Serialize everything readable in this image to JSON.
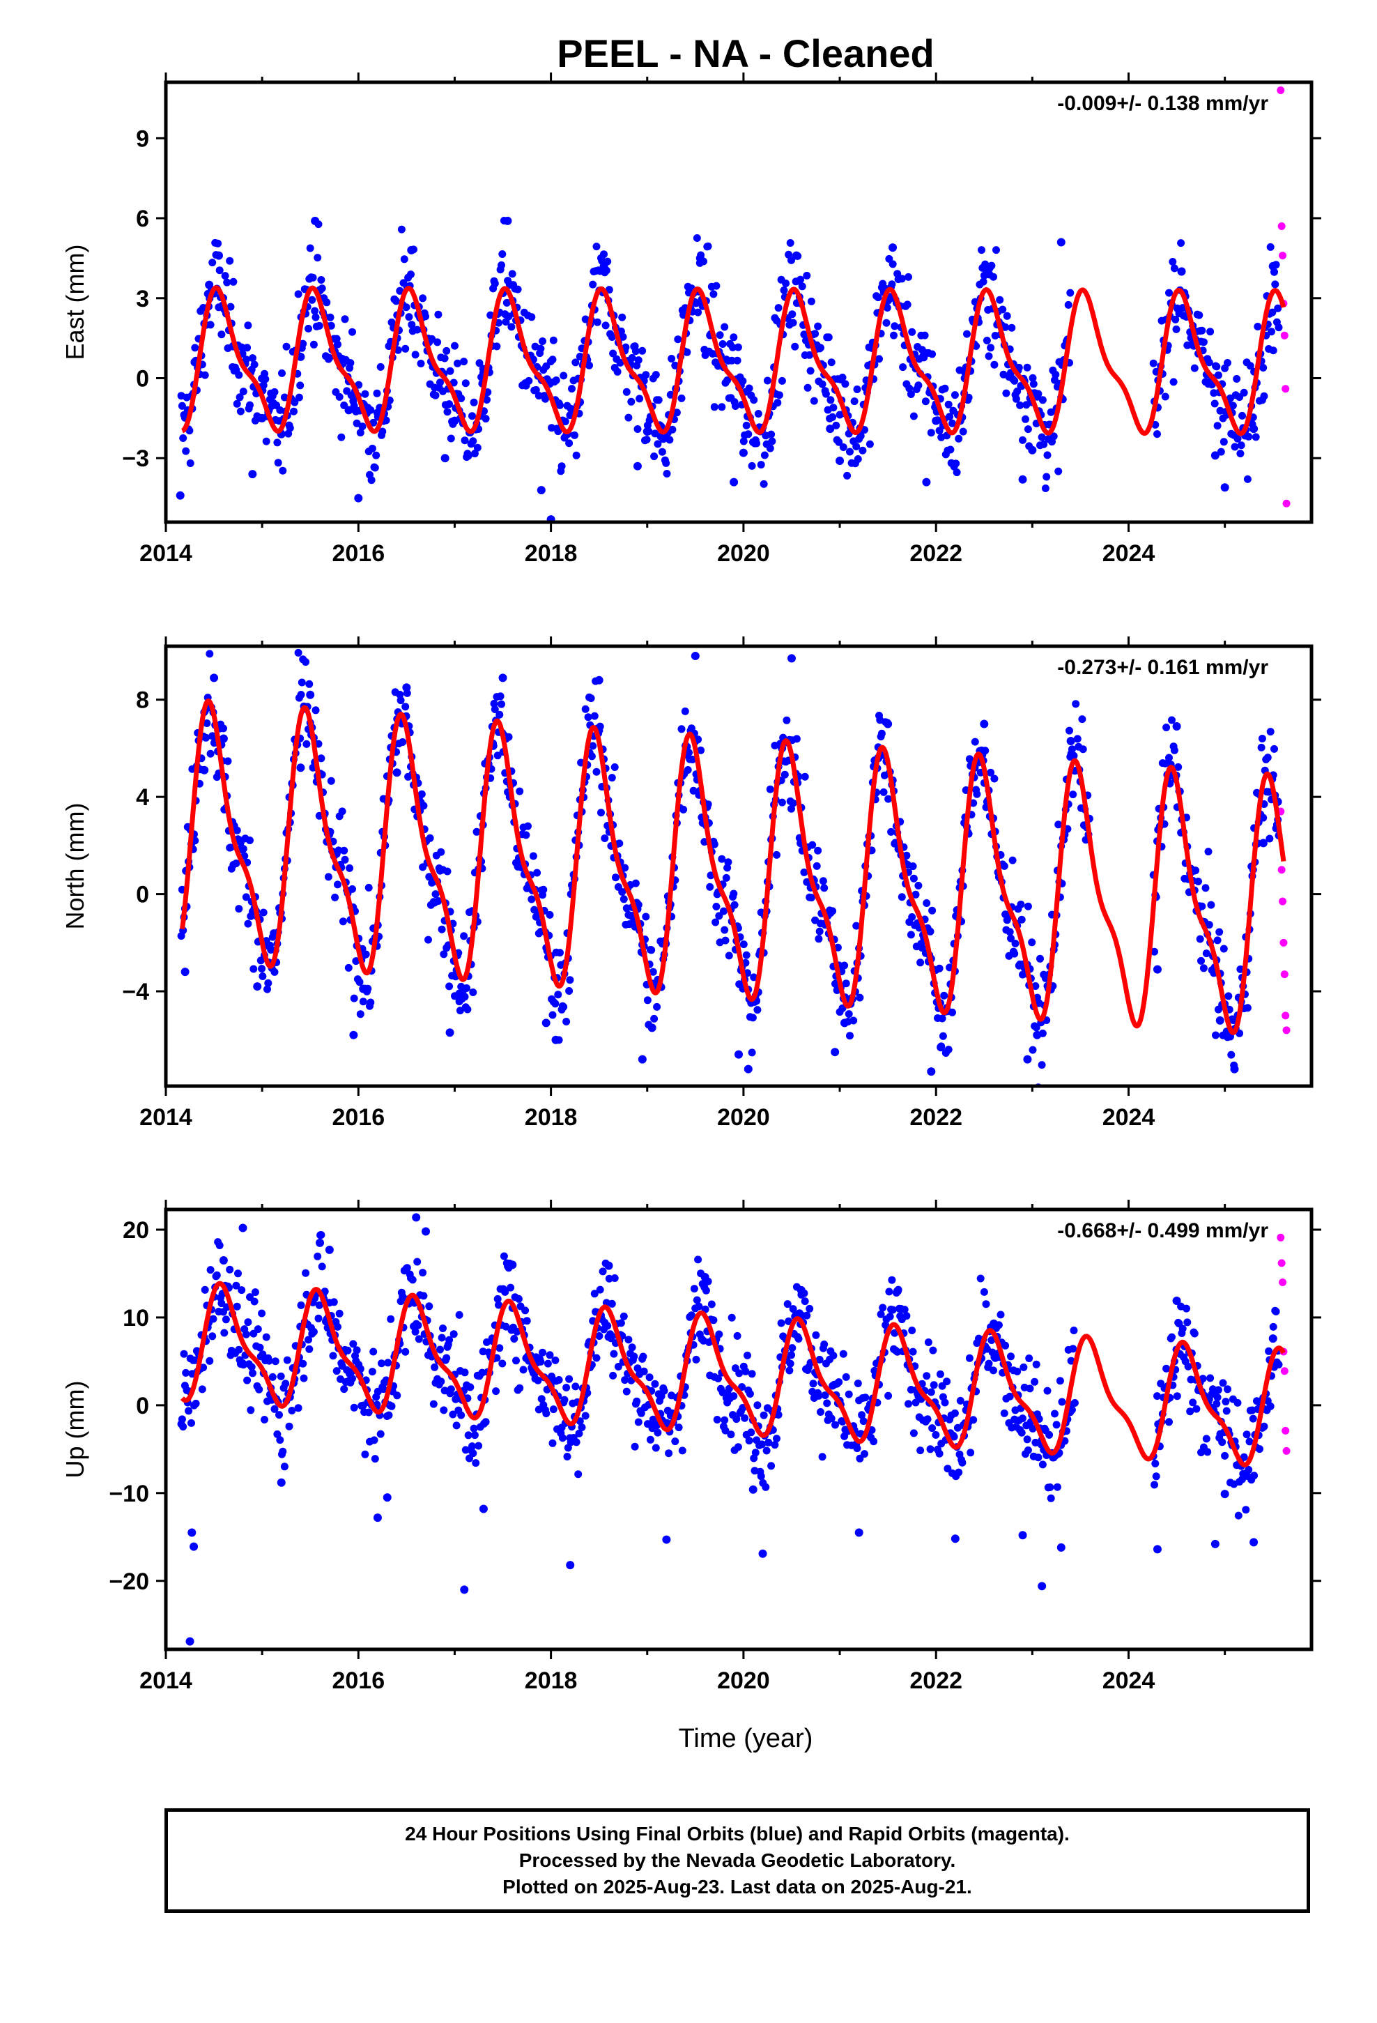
{
  "title": "PEEL  - NA - Cleaned",
  "xlabel": "Time (year)",
  "footer": {
    "line1": "24 Hour Positions Using Final Orbits (blue) and Rapid Orbits (magenta).",
    "line2": "Processed by the Nevada Geodetic Laboratory.",
    "line3": "Plotted on 2025-Aug-23. Last data on 2025-Aug-21."
  },
  "colors": {
    "final": "#0000ff",
    "rapid": "#ff00ff",
    "model": "#ff0000"
  },
  "chart_data": [
    {
      "type": "scatter",
      "component": "east",
      "ylabel": "East (mm)",
      "rate_text": "-0.009+/- 0.138 mm/yr",
      "xlim": [
        2014.0,
        2025.9
      ],
      "ylim": [
        -5.4,
        11.1
      ],
      "xticks": [
        2014,
        2016,
        2018,
        2020,
        2022,
        2024
      ],
      "yticks": [
        -3,
        0,
        3,
        6,
        9
      ],
      "ytick_labels": [
        "−3",
        "0",
        "3",
        "6",
        "9"
      ],
      "seasonal": {
        "amplitude": 2.3,
        "offset": 0.5,
        "peak_phase": 0.58,
        "trend": -0.009,
        "t0": 2019.8
      },
      "gap": [
        2023.4,
        2024.25
      ],
      "series": [
        {
          "name": "Final Orbits",
          "x": [
            2014.15,
            2014.3,
            2014.45,
            2014.55,
            2014.7,
            2014.9,
            2015.0,
            2015.2,
            2015.4,
            2015.55,
            2015.6,
            2015.9,
            2016.0,
            2016.2,
            2016.4,
            2016.55,
            2016.9,
            2017.0,
            2017.3,
            2017.55,
            2017.6,
            2017.9,
            2018.0,
            2018.3,
            2018.55,
            2018.9,
            2019.0,
            2019.3,
            2019.55,
            2019.9,
            2020.0,
            2020.3,
            2020.55,
            2020.9,
            2021.0,
            2021.3,
            2021.55,
            2021.9,
            2022.0,
            2022.3,
            2022.55,
            2022.9,
            2023.0,
            2023.3,
            2024.3,
            2024.55,
            2024.9,
            2025.0,
            2025.3,
            2025.5
          ],
          "y": [
            -4.4,
            0.6,
            3.5,
            4.6,
            1.2,
            -3.6,
            -1.5,
            -2.1,
            0.8,
            5.9,
            3.3,
            -1.2,
            -4.5,
            -1.3,
            1.5,
            4.8,
            -3.0,
            -1.6,
            0.2,
            5.9,
            2.9,
            -4.2,
            -5.3,
            -0.9,
            4.2,
            -3.3,
            -2.0,
            -0.4,
            4.5,
            -3.9,
            -2.8,
            -0.5,
            4.6,
            -1.9,
            -3.1,
            -0.2,
            4.9,
            -3.9,
            -1.6,
            0.0,
            3.9,
            -3.8,
            -2.7,
            5.1,
            -1.1,
            4.0,
            -2.9,
            -4.1,
            -1.9,
            4.2
          ]
        },
        {
          "name": "Rapid Orbits",
          "x": [
            2025.58,
            2025.59,
            2025.6,
            2025.61,
            2025.62,
            2025.63,
            2025.64
          ],
          "y": [
            10.8,
            5.7,
            4.6,
            2.8,
            1.6,
            -0.4,
            -4.7
          ]
        }
      ]
    },
    {
      "type": "scatter",
      "component": "north",
      "ylabel": "North (mm)",
      "rate_text": "-0.273+/- 0.161 mm/yr",
      "xlim": [
        2014.0,
        2025.9
      ],
      "ylim": [
        -7.9,
        10.2
      ],
      "xticks": [
        2014,
        2016,
        2018,
        2020,
        2022,
        2024
      ],
      "yticks": [
        -4,
        0,
        4,
        8
      ],
      "ytick_labels": [
        "−4",
        "0",
        "4",
        "8"
      ],
      "seasonal": {
        "amplitude": 4.6,
        "offset": 0.8,
        "peak_phase": 0.5,
        "trend": -0.273,
        "t0": 2019.8
      },
      "gap": [
        2023.6,
        2024.25
      ],
      "series": [
        {
          "name": "Final Orbits",
          "x": [
            2014.2,
            2014.4,
            2014.5,
            2014.6,
            2014.95,
            2015.4,
            2015.5,
            2015.95,
            2016.05,
            2016.4,
            2016.5,
            2016.95,
            2017.05,
            2017.4,
            2017.5,
            2017.95,
            2018.05,
            2018.4,
            2018.5,
            2018.95,
            2019.05,
            2019.4,
            2019.5,
            2019.95,
            2020.05,
            2020.4,
            2020.5,
            2020.95,
            2021.05,
            2021.4,
            2021.5,
            2021.95,
            2022.05,
            2022.4,
            2022.5,
            2022.95,
            2023.05,
            2023.4,
            2024.3,
            2024.5,
            2024.95,
            2025.1,
            2025.4,
            2025.55
          ],
          "y": [
            -3.2,
            5.1,
            8.9,
            6.4,
            -3.8,
            5.2,
            8.2,
            -5.8,
            -3.9,
            5.0,
            8.5,
            -5.7,
            -4.1,
            6.1,
            8.9,
            -5.3,
            -6.0,
            5.8,
            8.8,
            -6.8,
            -5.5,
            6.1,
            9.8,
            -6.6,
            -7.2,
            6.0,
            9.7,
            -6.5,
            -5.3,
            5.6,
            7.0,
            -7.3,
            -6.3,
            5.2,
            7.0,
            -6.8,
            -5.8,
            6.3,
            -3.1,
            6.9,
            -5.2,
            -7.2,
            2.1,
            3.8
          ]
        },
        {
          "name": "Rapid Orbits",
          "x": [
            2025.58,
            2025.59,
            2025.6,
            2025.61,
            2025.62,
            2025.63,
            2025.64
          ],
          "y": [
            3.4,
            1.0,
            -0.3,
            -2.0,
            -3.3,
            -5.0,
            -5.6
          ]
        }
      ]
    },
    {
      "type": "scatter",
      "component": "up",
      "ylabel": "Up (mm)",
      "rate_text": "-0.668+/- 0.499 mm/yr",
      "xlim": [
        2014.0,
        2025.9
      ],
      "ylim": [
        -27.8,
        22.3
      ],
      "xticks": [
        2014,
        2016,
        2018,
        2020,
        2022,
        2024
      ],
      "yticks": [
        -20,
        -10,
        0,
        10,
        20
      ],
      "ytick_labels": [
        "−20",
        "−10",
        "0",
        "10",
        "20"
      ],
      "seasonal": {
        "amplitude": 5.8,
        "offset": 3.2,
        "peak_phase": 0.62,
        "trend": -0.668,
        "t0": 2019.8
      },
      "gap": [
        2023.45,
        2024.25
      ],
      "series": [
        {
          "name": "Final Orbits",
          "x": [
            2014.25,
            2014.27,
            2014.29,
            2014.6,
            2014.8,
            2015.2,
            2015.6,
            2015.7,
            2016.2,
            2016.3,
            2016.6,
            2016.7,
            2017.1,
            2017.3,
            2017.6,
            2018.2,
            2018.6,
            2019.2,
            2019.6,
            2020.1,
            2020.2,
            2020.6,
            2021.2,
            2021.6,
            2022.2,
            2022.6,
            2022.9,
            2023.1,
            2023.3,
            2024.3,
            2024.5,
            2024.9,
            2025.0,
            2025.3,
            2025.5
          ],
          "y": [
            -26.9,
            -14.5,
            -16.1,
            16.5,
            20.2,
            -8.8,
            18.5,
            17.7,
            -12.8,
            -10.5,
            21.4,
            19.8,
            -21.0,
            -11.8,
            16.0,
            -18.2,
            15.9,
            -15.3,
            14.6,
            -9.6,
            -16.9,
            13.1,
            -14.5,
            13.0,
            -15.2,
            9.3,
            -14.8,
            -20.6,
            -16.2,
            -16.4,
            11.9,
            -15.8,
            -10.1,
            -15.6,
            7.6
          ]
        },
        {
          "name": "Rapid Orbits",
          "x": [
            2025.58,
            2025.59,
            2025.6,
            2025.61,
            2025.62,
            2025.63,
            2025.64
          ],
          "y": [
            19.1,
            16.2,
            14.0,
            6.1,
            3.9,
            -2.9,
            -5.2
          ]
        }
      ]
    }
  ]
}
